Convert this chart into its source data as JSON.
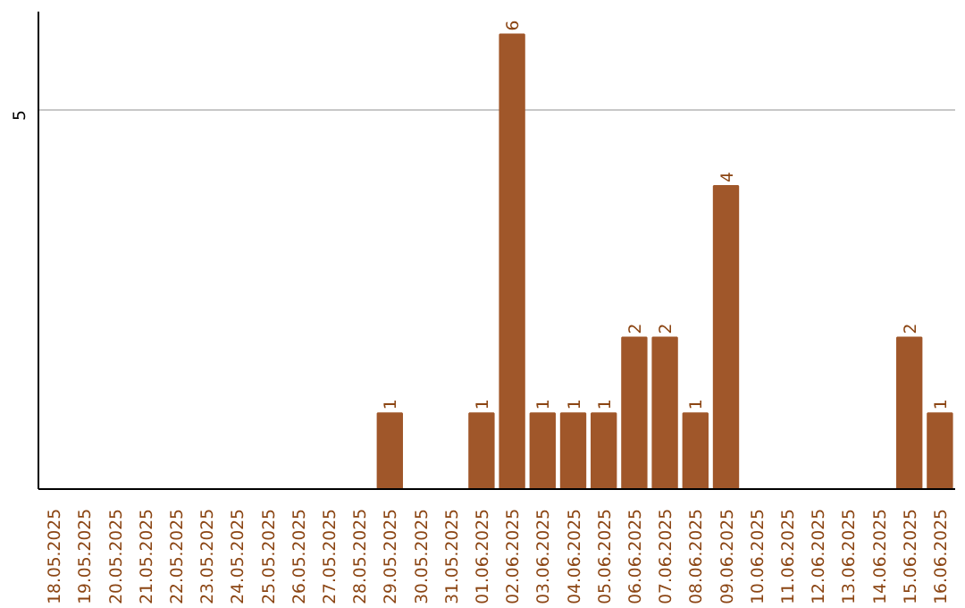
{
  "chart_data": {
    "type": "bar",
    "categories": [
      "18.05.2025",
      "19.05.2025",
      "20.05.2025",
      "21.05.2025",
      "22.05.2025",
      "23.05.2025",
      "24.05.2025",
      "25.05.2025",
      "26.05.2025",
      "27.05.2025",
      "28.05.2025",
      "29.05.2025",
      "30.05.2025",
      "31.05.2025",
      "01.06.2025",
      "02.06.2025",
      "03.06.2025",
      "04.06.2025",
      "05.06.2025",
      "06.06.2025",
      "07.06.2025",
      "08.06.2025",
      "09.06.2025",
      "10.06.2025",
      "11.06.2025",
      "12.06.2025",
      "13.06.2025",
      "14.06.2025",
      "15.06.2025",
      "16.06.2025"
    ],
    "values": [
      0,
      0,
      0,
      0,
      0,
      0,
      0,
      0,
      0,
      0,
      0,
      1,
      0,
      0,
      1,
      6,
      1,
      1,
      1,
      2,
      2,
      1,
      4,
      0,
      0,
      0,
      0,
      0,
      2,
      1
    ],
    "value_labels": [
      null,
      null,
      null,
      null,
      null,
      null,
      null,
      null,
      null,
      null,
      null,
      "1",
      null,
      null,
      "1",
      "6",
      "1",
      "1",
      "1",
      "2",
      "2",
      "1",
      "4",
      null,
      null,
      null,
      null,
      null,
      "2",
      "1"
    ],
    "color": "#a0572a",
    "ylim": [
      0,
      6.3
    ],
    "yticks": [
      5
    ],
    "grid": "y"
  }
}
